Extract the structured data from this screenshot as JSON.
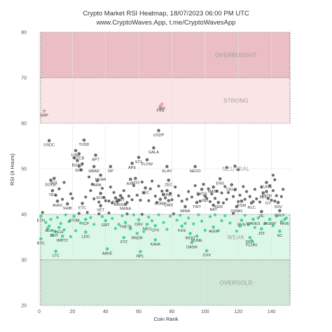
{
  "chart_data": {
    "type": "scatter",
    "title_line1": "Crypto Market RSI Heatmap, 18/07/2023 06:00 PM UTC",
    "title_line2": "www.CryptoWaves.App, t.me/CryptoWavesApp",
    "xlabel": "Coin Rank",
    "ylabel": "RSI (4 Hours)",
    "xlim": [
      0,
      152
    ],
    "ylim": [
      20,
      80
    ],
    "xticks": [
      0,
      20,
      40,
      60,
      80,
      100,
      120,
      140
    ],
    "yticks": [
      20,
      30,
      40,
      50,
      60,
      70,
      80
    ],
    "zones": [
      {
        "label": "OVERBOUGHT",
        "from": 70,
        "to": 80,
        "color": "#d9888f"
      },
      {
        "label": "STRONG",
        "from": 60,
        "to": 70,
        "color": "#f8cdd2"
      },
      {
        "label": "NEUTRAL",
        "from": 40,
        "to": 60,
        "color": "#ffffff"
      },
      {
        "label": "WEAK",
        "from": 30,
        "to": 40,
        "color": "#bdf0d4"
      },
      {
        "label": "OVERSOLD",
        "from": 20,
        "to": 30,
        "color": "#a9d4b3"
      }
    ],
    "colors": {
      "neutral": "#6e6e6e",
      "strong": "#f0a0a8",
      "weak": "#4dd39a"
    },
    "points": [
      {
        "label": "XRP",
        "x": 3,
        "y": 62.7
      },
      {
        "label": "FXS",
        "x": 73,
        "y": 63.8
      },
      {
        "label": "IMX",
        "x": 74,
        "y": 64.2
      },
      {
        "label": "USDP",
        "x": 72,
        "y": 58.4
      },
      {
        "label": "USDC",
        "x": 6,
        "y": 56.2
      },
      {
        "label": "TUSD",
        "x": 27,
        "y": 56.3
      },
      {
        "label": "GALA",
        "x": 69,
        "y": 54.6
      },
      {
        "label": "LINK",
        "x": 22,
        "y": 54.0
      },
      {
        "label": "BTCB",
        "x": 24,
        "y": 53.3
      },
      {
        "label": "APT",
        "x": 34,
        "y": 53.0
      },
      {
        "label": "STX",
        "x": 60,
        "y": 52.5
      },
      {
        "label": "FLOW",
        "x": 65,
        "y": 52.0
      },
      {
        "label": "BUSD",
        "x": 23,
        "y": 51.8
      },
      {
        "label": "APE",
        "x": 56,
        "y": 51.2
      },
      {
        "label": "XLM",
        "x": 24,
        "y": 50.6
      },
      {
        "label": "HBAR",
        "x": 33,
        "y": 50.5
      },
      {
        "label": "OP",
        "x": 43,
        "y": 50.5
      },
      {
        "label": "KLAY",
        "x": 77,
        "y": 50.5
      },
      {
        "label": "NEXO",
        "x": 94,
        "y": 50.5
      },
      {
        "label": "NEAR",
        "x": 37,
        "y": 48.6
      },
      {
        "label": "ARB",
        "x": 35,
        "y": 47.4
      },
      {
        "label": "AXS",
        "x": 55,
        "y": 47.7
      },
      {
        "label": "LDO",
        "x": 58,
        "y": 47.9
      },
      {
        "label": "ZEC",
        "x": 78,
        "y": 47.5
      },
      {
        "label": "ENS",
        "x": 109,
        "y": 47.8
      },
      {
        "label": "LUNA",
        "x": 137,
        "y": 47.0
      },
      {
        "label": "DOGE",
        "x": 7,
        "y": 47.5
      },
      {
        "label": "SOL",
        "x": 9,
        "y": 47.9
      },
      {
        "label": "XEC",
        "x": 64,
        "y": 45.8
      },
      {
        "label": "EOS",
        "x": 37,
        "y": 44.6
      },
      {
        "label": "LUNC",
        "x": 77,
        "y": 45.2
      },
      {
        "label": "TRX",
        "x": 8,
        "y": 45.2
      },
      {
        "label": "AVAX",
        "x": 11,
        "y": 42.9
      },
      {
        "label": "SHIB",
        "x": 17,
        "y": 42.3
      },
      {
        "label": "ETC",
        "x": 26,
        "y": 42.4
      },
      {
        "label": "VET",
        "x": 37,
        "y": 41.9
      },
      {
        "label": "MANA",
        "x": 52,
        "y": 42.2
      },
      {
        "label": "CHZ",
        "x": 46,
        "y": 43.6
      },
      {
        "label": "AAVE",
        "x": 48,
        "y": 43.1
      },
      {
        "label": "QNT",
        "x": 49,
        "y": 44.1
      },
      {
        "label": "COMP",
        "x": 73,
        "y": 43.3
      },
      {
        "label": "GMX",
        "x": 78,
        "y": 43.0
      },
      {
        "label": "MINA",
        "x": 88,
        "y": 41.7
      },
      {
        "label": "TWT",
        "x": 95,
        "y": 42.6
      },
      {
        "label": "DYDX",
        "x": 98,
        "y": 45.5
      },
      {
        "label": "MASK",
        "x": 105,
        "y": 46.0
      },
      {
        "label": "INJ",
        "x": 100,
        "y": 44.0
      },
      {
        "label": "BAT",
        "x": 105,
        "y": 42.0
      },
      {
        "label": "XEM",
        "x": 108,
        "y": 42.6
      },
      {
        "label": "CELO",
        "x": 116,
        "y": 46.5
      },
      {
        "label": "OSMO",
        "x": 119,
        "y": 41.7
      },
      {
        "label": "KSM",
        "x": 122,
        "y": 42.9
      },
      {
        "label": "RLC",
        "x": 128,
        "y": 42.5
      },
      {
        "label": "ILV",
        "x": 138,
        "y": 43.5
      },
      {
        "label": "SSV",
        "x": 144,
        "y": 42.6
      },
      {
        "label": "FET",
        "x": 135,
        "y": 44.7
      },
      {
        "label": "ASTR",
        "x": 137,
        "y": 45.0
      },
      {
        "label": "ETH",
        "x": 1,
        "y": 39.6
      },
      {
        "label": "ADA",
        "x": 6,
        "y": 37.4
      },
      {
        "label": "DOT",
        "x": 9,
        "y": 36.3
      },
      {
        "label": "BCH",
        "x": 12,
        "y": 37.1
      },
      {
        "label": "BTC",
        "x": 1,
        "y": 34.6
      },
      {
        "label": "WBTC",
        "x": 14,
        "y": 35.2
      },
      {
        "label": "LTC",
        "x": 10,
        "y": 31.9
      },
      {
        "label": "ATOM",
        "x": 21,
        "y": 39.6
      },
      {
        "label": "ICP",
        "x": 28,
        "y": 38.9
      },
      {
        "label": "LDO",
        "x": 28,
        "y": 36.1
      },
      {
        "label": "GRT",
        "x": 40,
        "y": 38.6
      },
      {
        "label": "THETA",
        "x": 52,
        "y": 38.2
      },
      {
        "label": "CRV",
        "x": 60,
        "y": 38.8
      },
      {
        "label": "NEO",
        "x": 65,
        "y": 37.8
      },
      {
        "label": "CFX",
        "x": 70,
        "y": 37.5
      },
      {
        "label": "RNDR",
        "x": 59,
        "y": 35.8
      },
      {
        "label": "XTZ",
        "x": 51,
        "y": 34.9
      },
      {
        "label": "KAVA",
        "x": 70,
        "y": 34.4
      },
      {
        "label": "AAVE",
        "x": 41,
        "y": 32.4
      },
      {
        "label": "RPL",
        "x": 61,
        "y": 31.8
      },
      {
        "label": "FXS",
        "x": 86,
        "y": 37.4
      },
      {
        "label": "WOO",
        "x": 91,
        "y": 35.8
      },
      {
        "label": "RUNE",
        "x": 95,
        "y": 35.2
      },
      {
        "label": "DASH",
        "x": 92,
        "y": 33.8
      },
      {
        "label": "AGIX",
        "x": 105,
        "y": 37.2
      },
      {
        "label": "CVX",
        "x": 101,
        "y": 32.0
      },
      {
        "label": "RVN",
        "x": 122,
        "y": 38.7
      },
      {
        "label": "JST",
        "x": 134,
        "y": 36.8
      },
      {
        "label": "WAVES",
        "x": 129,
        "y": 38.9
      },
      {
        "label": "JASMY",
        "x": 139,
        "y": 38.9
      },
      {
        "label": "ZIL",
        "x": 134,
        "y": 40.6
      },
      {
        "label": "CELF",
        "x": 145,
        "y": 40.8
      },
      {
        "label": "HIVE",
        "x": 148,
        "y": 38.9
      },
      {
        "label": "SC",
        "x": 145,
        "y": 36.3
      },
      {
        "label": "DCR",
        "x": 127,
        "y": 34.9
      },
      {
        "label": "FLOKI",
        "x": 128,
        "y": 34.2
      }
    ],
    "extra_points_unlabeled": [
      [
        2,
        40.4
      ],
      [
        4,
        38.2
      ],
      [
        5,
        36.9
      ],
      [
        7,
        38.9
      ],
      [
        8,
        35.4
      ],
      [
        11,
        39.3
      ],
      [
        13,
        38.0
      ],
      [
        15,
        36.6
      ],
      [
        16,
        39.9
      ],
      [
        18,
        38.4
      ],
      [
        19,
        35.1
      ],
      [
        22,
        36.4
      ],
      [
        24,
        40.2
      ],
      [
        25,
        38.1
      ],
      [
        29,
        40.4
      ],
      [
        31,
        39.3
      ],
      [
        33,
        37.8
      ],
      [
        36,
        40.1
      ],
      [
        38,
        39.5
      ],
      [
        42,
        40.3
      ],
      [
        44,
        39.1
      ],
      [
        46,
        36.9
      ],
      [
        48,
        37.8
      ],
      [
        50,
        39.7
      ],
      [
        53,
        40.1
      ],
      [
        55,
        36.8
      ],
      [
        57,
        39.9
      ],
      [
        62,
        40.0
      ],
      [
        63,
        36.2
      ],
      [
        66,
        39.4
      ],
      [
        68,
        38.6
      ],
      [
        72,
        39.9
      ],
      [
        75,
        38.2
      ],
      [
        77,
        36.7
      ],
      [
        79,
        39.6
      ],
      [
        81,
        40.1
      ],
      [
        83,
        38.7
      ],
      [
        85,
        39.8
      ],
      [
        88,
        38.0
      ],
      [
        90,
        39.2
      ],
      [
        93,
        37.9
      ],
      [
        96,
        39.9
      ],
      [
        98,
        38.5
      ],
      [
        100,
        36.5
      ],
      [
        103,
        39.5
      ],
      [
        106,
        39.9
      ],
      [
        108,
        36.4
      ],
      [
        110,
        38.6
      ],
      [
        112,
        39.7
      ],
      [
        115,
        38.1
      ],
      [
        117,
        40.2
      ],
      [
        119,
        36.3
      ],
      [
        121,
        37.4
      ],
      [
        124,
        39.8
      ],
      [
        126,
        37.7
      ],
      [
        130,
        37.1
      ],
      [
        132,
        39.2
      ],
      [
        136,
        38.0
      ],
      [
        141,
        37.5
      ],
      [
        143,
        39.6
      ],
      [
        146,
        38.4
      ],
      [
        149,
        39.2
      ],
      [
        10,
        44.2
      ],
      [
        12,
        45.6
      ],
      [
        14,
        43.3
      ],
      [
        15,
        47.0
      ],
      [
        19,
        44.5
      ],
      [
        20,
        43.5
      ],
      [
        21,
        52.4
      ],
      [
        25,
        49.8
      ],
      [
        26,
        51.1
      ],
      [
        28,
        43.8
      ],
      [
        30,
        48.2
      ],
      [
        31,
        45.2
      ],
      [
        32,
        46.6
      ],
      [
        33,
        43.4
      ],
      [
        36,
        42.7
      ],
      [
        38,
        45.7
      ],
      [
        39,
        43.7
      ],
      [
        40,
        43.0
      ],
      [
        42,
        42.9
      ],
      [
        43,
        46.0
      ],
      [
        44,
        42.5
      ],
      [
        45,
        44.8
      ],
      [
        47,
        42.9
      ],
      [
        50,
        43.6
      ],
      [
        51,
        45.2
      ],
      [
        53,
        42.6
      ],
      [
        54,
        44.0
      ],
      [
        56,
        43.2
      ],
      [
        57,
        46.3
      ],
      [
        59,
        44.2
      ],
      [
        61,
        43.1
      ],
      [
        62,
        47.1
      ],
      [
        63,
        44.7
      ],
      [
        66,
        43.0
      ],
      [
        67,
        45.6
      ],
      [
        68,
        47.3
      ],
      [
        70,
        44.0
      ],
      [
        71,
        42.6
      ],
      [
        72,
        46.2
      ],
      [
        74,
        45.1
      ],
      [
        75,
        44.4
      ],
      [
        76,
        43.6
      ],
      [
        79,
        44.6
      ],
      [
        80,
        43.2
      ],
      [
        82,
        46.0
      ],
      [
        84,
        44.1
      ],
      [
        86,
        42.9
      ],
      [
        89,
        43.3
      ],
      [
        90,
        45.0
      ],
      [
        92,
        43.8
      ],
      [
        94,
        46.3
      ],
      [
        96,
        44.4
      ],
      [
        97,
        42.9
      ],
      [
        99,
        46.6
      ],
      [
        101,
        43.5
      ],
      [
        102,
        45.6
      ],
      [
        103,
        42.8
      ],
      [
        104,
        44.5
      ],
      [
        106,
        43.5
      ],
      [
        107,
        45.1
      ],
      [
        110,
        44.7
      ],
      [
        111,
        42.5
      ],
      [
        112,
        46.1
      ],
      [
        113,
        43.3
      ],
      [
        114,
        44.8
      ],
      [
        117,
        43.9
      ],
      [
        118,
        45.4
      ],
      [
        120,
        42.8
      ],
      [
        121,
        44.2
      ],
      [
        123,
        46.1
      ],
      [
        124,
        43.3
      ],
      [
        125,
        45.0
      ],
      [
        127,
        43.9
      ],
      [
        129,
        42.8
      ],
      [
        130,
        45.5
      ],
      [
        131,
        43.4
      ],
      [
        133,
        42.7
      ],
      [
        134,
        46.0
      ],
      [
        139,
        46.3
      ],
      [
        140,
        43.1
      ],
      [
        141,
        45.2
      ],
      [
        142,
        42.9
      ],
      [
        143,
        44.1
      ],
      [
        146,
        43.9
      ],
      [
        147,
        45.5
      ],
      [
        113,
        50.3
      ],
      [
        118,
        50.6
      ],
      [
        120,
        49.8
      ],
      [
        141,
        48.6
      ],
      [
        142,
        47.6
      ]
    ]
  }
}
